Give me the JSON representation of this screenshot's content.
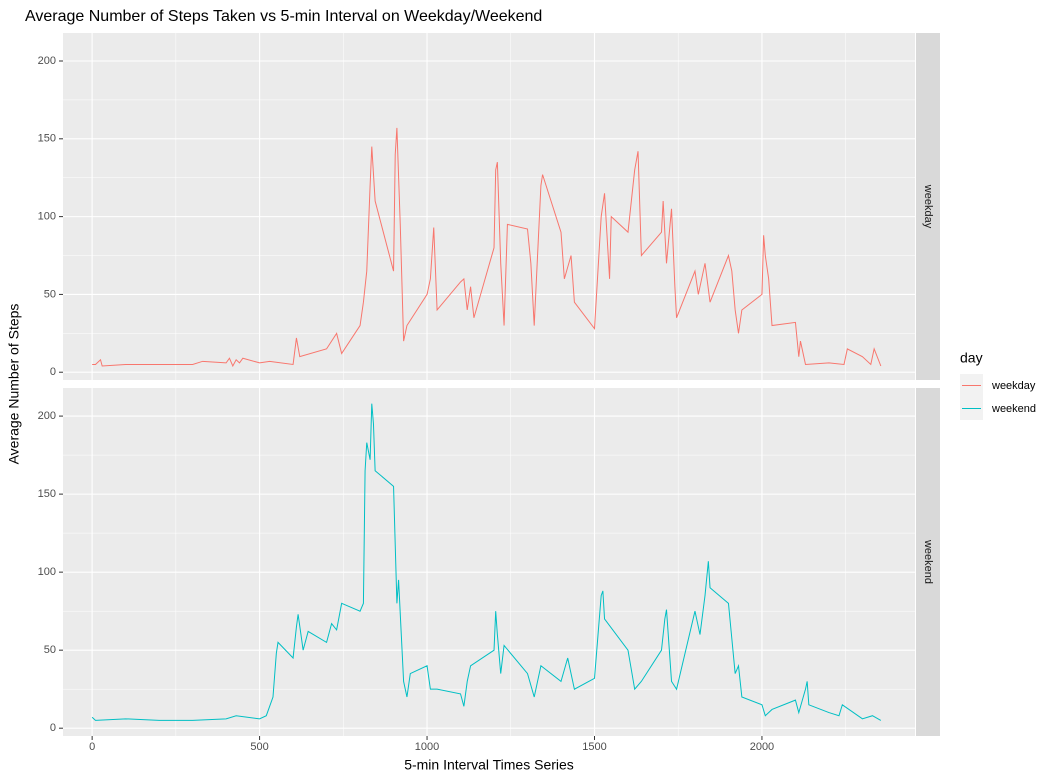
{
  "chart_data": {
    "type": "line",
    "title": "Average Number of Steps Taken vs 5-min Interval on Weekday/Weekend",
    "x_label": "5-min Interval Times Series",
    "y_label": "Average Number of Steps",
    "legend_title": "day",
    "xlim": [
      -87,
      2457
    ],
    "xticks": [
      0,
      500,
      1000,
      1500,
      2000
    ],
    "ylim": [
      -5,
      218
    ],
    "yticks": [
      0,
      50,
      100,
      150,
      200
    ],
    "grid": true,
    "series": [
      {
        "name": "weekday",
        "color": "#f8766d",
        "x": [
          0,
          10,
          25,
          30,
          100,
          200,
          300,
          330,
          400,
          410,
          420,
          430,
          440,
          450,
          500,
          530,
          600,
          610,
          620,
          700,
          730,
          745,
          800,
          810,
          820,
          830,
          835,
          845,
          900,
          905,
          910,
          920,
          930,
          940,
          1000,
          1010,
          1020,
          1030,
          1100,
          1110,
          1120,
          1130,
          1140,
          1200,
          1205,
          1210,
          1220,
          1230,
          1240,
          1300,
          1310,
          1320,
          1340,
          1345,
          1400,
          1410,
          1430,
          1440,
          1500,
          1520,
          1530,
          1545,
          1550,
          1600,
          1620,
          1630,
          1640,
          1700,
          1705,
          1715,
          1730,
          1740,
          1745,
          1800,
          1810,
          1830,
          1845,
          1900,
          1910,
          1920,
          1930,
          1940,
          2000,
          2005,
          2010,
          2020,
          2030,
          2100,
          2110,
          2115,
          2130,
          2200,
          2245,
          2255,
          2300,
          2325,
          2335,
          2355
        ],
        "values": [
          5,
          5,
          8,
          4,
          5,
          5,
          5,
          7,
          6,
          9,
          4,
          8,
          6,
          9,
          6,
          7,
          5,
          22,
          10,
          15,
          25,
          12,
          30,
          45,
          65,
          120,
          145,
          110,
          65,
          140,
          157,
          95,
          20,
          30,
          50,
          60,
          93,
          40,
          58,
          60,
          40,
          55,
          35,
          80,
          130,
          135,
          70,
          30,
          95,
          92,
          70,
          30,
          120,
          127,
          90,
          60,
          75,
          45,
          28,
          100,
          115,
          60,
          100,
          90,
          130,
          142,
          75,
          90,
          110,
          70,
          105,
          55,
          35,
          65,
          50,
          70,
          45,
          75,
          65,
          40,
          25,
          40,
          50,
          88,
          75,
          60,
          30,
          32,
          10,
          20,
          5,
          6,
          5,
          15,
          10,
          5,
          15,
          4
        ]
      },
      {
        "name": "weekend",
        "color": "#00bfc4",
        "x": [
          0,
          10,
          100,
          200,
          300,
          400,
          430,
          500,
          520,
          540,
          550,
          555,
          600,
          610,
          615,
          630,
          645,
          700,
          715,
          730,
          745,
          800,
          810,
          815,
          820,
          830,
          835,
          840,
          845,
          900,
          910,
          915,
          930,
          940,
          950,
          1000,
          1010,
          1030,
          1100,
          1110,
          1120,
          1130,
          1200,
          1205,
          1210,
          1220,
          1230,
          1300,
          1320,
          1340,
          1400,
          1420,
          1440,
          1500,
          1520,
          1525,
          1530,
          1600,
          1620,
          1640,
          1700,
          1710,
          1715,
          1730,
          1745,
          1800,
          1815,
          1830,
          1840,
          1845,
          1900,
          1920,
          1930,
          1940,
          2000,
          2010,
          2030,
          2100,
          2110,
          2130,
          2135,
          2140,
          2200,
          2230,
          2240,
          2300,
          2330,
          2355
        ],
        "values": [
          7,
          5,
          6,
          5,
          5,
          6,
          8,
          6,
          8,
          20,
          48,
          55,
          45,
          65,
          73,
          50,
          62,
          55,
          67,
          63,
          80,
          75,
          80,
          165,
          183,
          172,
          208,
          195,
          165,
          155,
          80,
          95,
          30,
          20,
          35,
          40,
          25,
          25,
          22,
          14,
          30,
          40,
          50,
          75,
          60,
          35,
          53,
          35,
          20,
          40,
          30,
          45,
          25,
          32,
          85,
          88,
          70,
          50,
          25,
          30,
          50,
          70,
          76,
          30,
          25,
          75,
          60,
          85,
          107,
          90,
          80,
          35,
          40,
          20,
          15,
          8,
          12,
          18,
          10,
          25,
          30,
          15,
          10,
          8,
          15,
          6,
          8,
          5
        ]
      }
    ]
  }
}
